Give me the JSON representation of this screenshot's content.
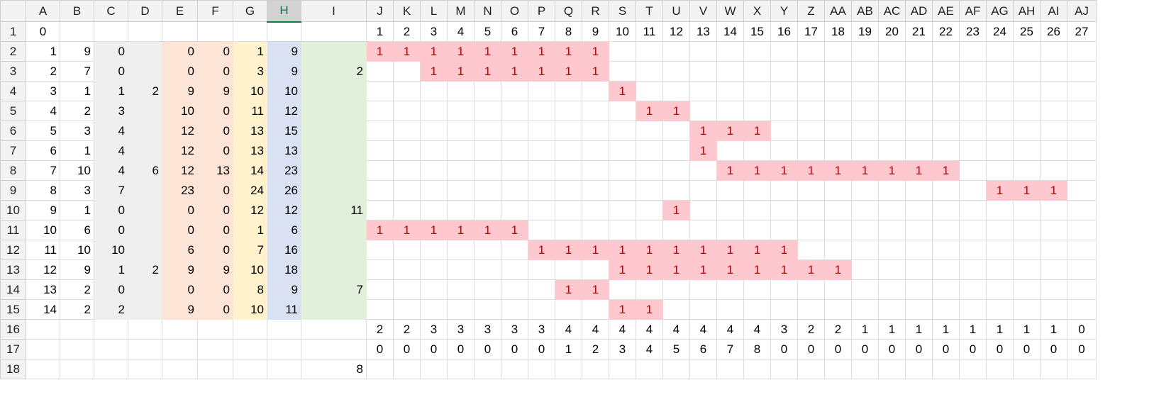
{
  "columns": [
    "A",
    "B",
    "C",
    "D",
    "E",
    "F",
    "G",
    "H",
    "I",
    "J",
    "K",
    "L",
    "M",
    "N",
    "O",
    "P",
    "Q",
    "R",
    "S",
    "T",
    "U",
    "V",
    "W",
    "X",
    "Y",
    "Z",
    "AA",
    "AB",
    "AC",
    "AD",
    "AE",
    "AF",
    "AG",
    "AH",
    "AI",
    "AJ"
  ],
  "selected_column": "H",
  "rows": [
    {
      "n": "1",
      "a": [
        "0",
        "",
        "",
        "",
        "",
        "",
        "",
        "",
        ""
      ],
      "g": [
        "1",
        "2",
        "3",
        "4",
        "5",
        "6",
        "7",
        "8",
        "9",
        "10",
        "11",
        "12",
        "13",
        "14",
        "15",
        "16",
        "17",
        "18",
        "19",
        "20",
        "21",
        "22",
        "23",
        "24",
        "25",
        "26",
        "27"
      ]
    },
    {
      "n": "2",
      "a": [
        "1",
        "9",
        "0",
        "",
        "0",
        "0",
        "1",
        "9",
        ""
      ],
      "g": [
        "1",
        "1",
        "1",
        "1",
        "1",
        "1",
        "1",
        "1",
        "1",
        "",
        "",
        "",
        "",
        "",
        "",
        "",
        "",
        "",
        "",
        "",
        "",
        "",
        "",
        "",
        "",
        "",
        ""
      ]
    },
    {
      "n": "3",
      "a": [
        "2",
        "7",
        "0",
        "",
        "0",
        "0",
        "3",
        "9",
        "2"
      ],
      "g": [
        "",
        "",
        "1",
        "1",
        "1",
        "1",
        "1",
        "1",
        "1",
        "",
        "",
        "",
        "",
        "",
        "",
        "",
        "",
        "",
        "",
        "",
        "",
        "",
        "",
        "",
        "",
        "",
        ""
      ]
    },
    {
      "n": "4",
      "a": [
        "3",
        "1",
        "1",
        "2",
        "9",
        "9",
        "10",
        "10",
        ""
      ],
      "g": [
        "",
        "",
        "",
        "",
        "",
        "",
        "",
        "",
        "",
        "1",
        "",
        "",
        "",
        "",
        "",
        "",
        "",
        "",
        "",
        "",
        "",
        "",
        "",
        "",
        "",
        "",
        ""
      ]
    },
    {
      "n": "5",
      "a": [
        "4",
        "2",
        "3",
        "",
        "10",
        "0",
        "11",
        "12",
        ""
      ],
      "g": [
        "",
        "",
        "",
        "",
        "",
        "",
        "",
        "",
        "",
        "",
        "1",
        "1",
        "",
        "",
        "",
        "",
        "",
        "",
        "",
        "",
        "",
        "",
        "",
        "",
        "",
        "",
        ""
      ]
    },
    {
      "n": "6",
      "a": [
        "5",
        "3",
        "4",
        "",
        "12",
        "0",
        "13",
        "15",
        ""
      ],
      "g": [
        "",
        "",
        "",
        "",
        "",
        "",
        "",
        "",
        "",
        "",
        "",
        "",
        "1",
        "1",
        "1",
        "",
        "",
        "",
        "",
        "",
        "",
        "",
        "",
        "",
        "",
        "",
        ""
      ]
    },
    {
      "n": "7",
      "a": [
        "6",
        "1",
        "4",
        "",
        "12",
        "0",
        "13",
        "13",
        ""
      ],
      "g": [
        "",
        "",
        "",
        "",
        "",
        "",
        "",
        "",
        "",
        "",
        "",
        "",
        "1",
        "",
        "",
        "",
        "",
        "",
        "",
        "",
        "",
        "",
        "",
        "",
        "",
        "",
        ""
      ]
    },
    {
      "n": "8",
      "a": [
        "7",
        "10",
        "4",
        "6",
        "12",
        "13",
        "14",
        "23",
        ""
      ],
      "g": [
        "",
        "",
        "",
        "",
        "",
        "",
        "",
        "",
        "",
        "",
        "",
        "",
        "",
        "1",
        "1",
        "1",
        "1",
        "1",
        "1",
        "1",
        "1",
        "1",
        "",
        "",
        "",
        "",
        ""
      ]
    },
    {
      "n": "9",
      "a": [
        "8",
        "3",
        "7",
        "",
        "23",
        "0",
        "24",
        "26",
        ""
      ],
      "g": [
        "",
        "",
        "",
        "",
        "",
        "",
        "",
        "",
        "",
        "",
        "",
        "",
        "",
        "",
        "",
        "",
        "",
        "",
        "",
        "",
        "",
        "",
        "",
        "1",
        "1",
        "1",
        ""
      ]
    },
    {
      "n": "10",
      "a": [
        "9",
        "1",
        "0",
        "",
        "0",
        "0",
        "12",
        "12",
        "11"
      ],
      "g": [
        "",
        "",
        "",
        "",
        "",
        "",
        "",
        "",
        "",
        "",
        "",
        "1",
        "",
        "",
        "",
        "",
        "",
        "",
        "",
        "",
        "",
        "",
        "",
        "",
        "",
        "",
        ""
      ]
    },
    {
      "n": "11",
      "a": [
        "10",
        "6",
        "0",
        "",
        "0",
        "0",
        "1",
        "6",
        ""
      ],
      "g": [
        "1",
        "1",
        "1",
        "1",
        "1",
        "1",
        "",
        "",
        "",
        "",
        "",
        "",
        "",
        "",
        "",
        "",
        "",
        "",
        "",
        "",
        "",
        "",
        "",
        "",
        "",
        "",
        ""
      ]
    },
    {
      "n": "12",
      "a": [
        "11",
        "10",
        "10",
        "",
        "6",
        "0",
        "7",
        "16",
        ""
      ],
      "g": [
        "",
        "",
        "",
        "",
        "",
        "",
        "1",
        "1",
        "1",
        "1",
        "1",
        "1",
        "1",
        "1",
        "1",
        "1",
        "",
        "",
        "",
        "",
        "",
        "",
        "",
        "",
        "",
        "",
        ""
      ]
    },
    {
      "n": "13",
      "a": [
        "12",
        "9",
        "1",
        "2",
        "9",
        "9",
        "10",
        "18",
        ""
      ],
      "g": [
        "",
        "",
        "",
        "",
        "",
        "",
        "",
        "",
        "",
        "1",
        "1",
        "1",
        "1",
        "1",
        "1",
        "1",
        "1",
        "1",
        "",
        "",
        "",
        "",
        "",
        "",
        "",
        "",
        ""
      ]
    },
    {
      "n": "14",
      "a": [
        "13",
        "2",
        "0",
        "",
        "0",
        "0",
        "8",
        "9",
        "7"
      ],
      "g": [
        "",
        "",
        "",
        "",
        "",
        "",
        "",
        "1",
        "1",
        "",
        "",
        "",
        "",
        "",
        "",
        "",
        "",
        "",
        "",
        "",
        "",
        "",
        "",
        "",
        "",
        "",
        ""
      ]
    },
    {
      "n": "15",
      "a": [
        "14",
        "2",
        "2",
        "",
        "9",
        "0",
        "10",
        "11",
        ""
      ],
      "g": [
        "",
        "",
        "",
        "",
        "",
        "",
        "",
        "",
        "",
        "1",
        "1",
        "",
        "",
        "",
        "",
        "",
        "",
        "",
        "",
        "",
        "",
        "",
        "",
        "",
        "",
        "",
        ""
      ]
    },
    {
      "n": "16",
      "a": [
        "",
        "",
        "",
        "",
        "",
        "",
        "",
        "",
        ""
      ],
      "g": [
        "2",
        "2",
        "3",
        "3",
        "3",
        "3",
        "3",
        "4",
        "4",
        "4",
        "4",
        "4",
        "4",
        "4",
        "4",
        "3",
        "2",
        "2",
        "1",
        "1",
        "1",
        "1",
        "1",
        "1",
        "1",
        "1",
        "0"
      ]
    },
    {
      "n": "17",
      "a": [
        "",
        "",
        "",
        "",
        "",
        "",
        "",
        "",
        ""
      ],
      "g": [
        "0",
        "0",
        "0",
        "0",
        "0",
        "0",
        "0",
        "1",
        "2",
        "3",
        "4",
        "5",
        "6",
        "7",
        "8",
        "0",
        "0",
        "0",
        "0",
        "0",
        "0",
        "0",
        "0",
        "0",
        "0",
        "0",
        "0"
      ]
    },
    {
      "n": "18",
      "a": [
        "",
        "",
        "",
        "",
        "",
        "",
        "",
        "",
        "8"
      ],
      "g": [
        "",
        "",
        "",
        "",
        "",
        "",
        "",
        "",
        "",
        "",
        "",
        "",
        "",
        "",
        "",
        "",
        "",
        "",
        "",
        "",
        "",
        "",
        "",
        "",
        "",
        "",
        ""
      ]
    }
  ],
  "colors": {
    "grey_band": "#efefef",
    "orange_band": "#fce4d6",
    "yellow_band": "#fff2cc",
    "blue_band": "#d9e1f2",
    "green_band": "#e2efda",
    "pink_fill": "#ffc7ce",
    "selected_header": "#107c41"
  }
}
